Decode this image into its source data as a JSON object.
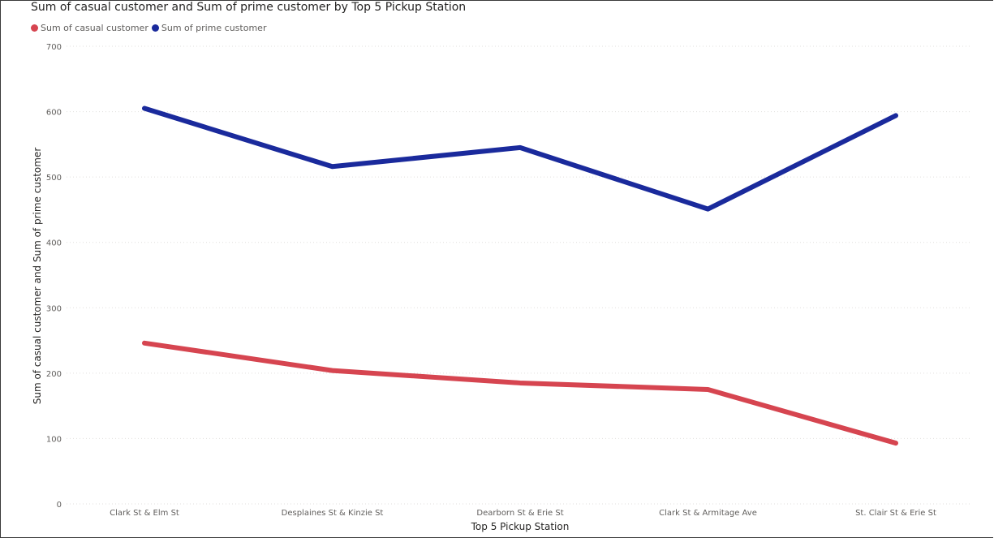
{
  "chart_data": {
    "type": "line",
    "title": "Sum of casual customer and Sum of prime customer by Top 5 Pickup Station",
    "xlabel": "Top 5 Pickup Station",
    "ylabel": "Sum of casual customer and Sum of prime customer",
    "categories": [
      "Clark St & Elm St",
      "Desplaines St & Kinzie St",
      "Dearborn St & Erie St",
      "Clark St & Armitage Ave",
      "St. Clair St & Erie St"
    ],
    "ylim": [
      0,
      700
    ],
    "yticks": [
      "0",
      "100",
      "200",
      "300",
      "400",
      "500",
      "600",
      "700"
    ],
    "grid": true,
    "legend_position": "top-left",
    "series": [
      {
        "name": "Sum of casual customer",
        "color": "#d64550",
        "values": [
          246,
          204,
          185,
          175,
          93
        ]
      },
      {
        "name": "Sum of prime customer",
        "color": "#1a2a9c",
        "values": [
          605,
          516,
          545,
          451,
          594
        ]
      }
    ]
  }
}
